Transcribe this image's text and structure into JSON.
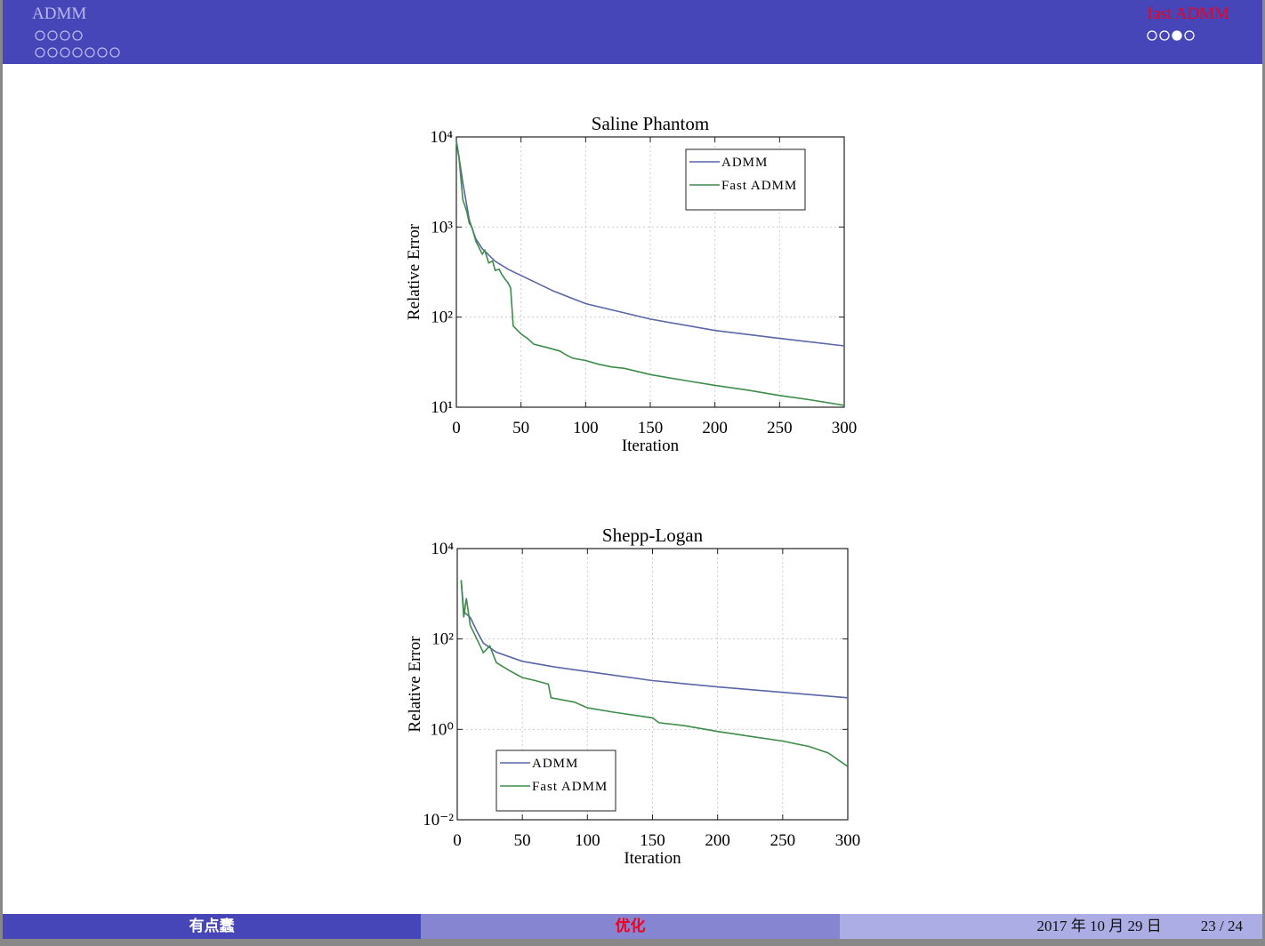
{
  "header": {
    "section": "ADMM",
    "subsection": "fast ADMM"
  },
  "footer": {
    "author": "有点蠢",
    "title": "优化",
    "date": "2017 年 10 月 29 日",
    "page": "23 / 24"
  },
  "chart_data": [
    {
      "type": "line",
      "title": "Saline Phantom",
      "xlabel": "Iteration",
      "ylabel": "Relative Error",
      "xlim": [
        0,
        300
      ],
      "xticks": [
        0,
        50,
        100,
        150,
        200,
        250,
        300
      ],
      "ylim": [
        10,
        10000
      ],
      "log_y": true,
      "yticks": [
        {
          "value": 10,
          "label": "10¹"
        },
        {
          "value": 100,
          "label": "10²"
        },
        {
          "value": 1000,
          "label": "10³"
        },
        {
          "value": 10000,
          "label": "10⁴"
        }
      ],
      "grid": true,
      "legend": "upper right",
      "series": [
        {
          "name": "ADMM",
          "color": "#5866a6",
          "x": [
            0,
            2,
            5,
            10,
            15,
            20,
            30,
            40,
            50,
            75,
            100,
            150,
            200,
            250,
            300
          ],
          "values": [
            9000,
            6000,
            3100,
            1200,
            740,
            575,
            417,
            340,
            290,
            195,
            141,
            95,
            71,
            58,
            48
          ]
        },
        {
          "name": "Fast ADMM",
          "color": "#3d8c4a",
          "x": [
            0,
            2,
            5,
            8,
            10,
            12,
            15,
            20,
            22,
            25,
            28,
            30,
            33,
            35,
            38,
            40,
            42,
            44,
            50,
            55,
            60,
            70,
            80,
            85,
            90,
            100,
            110,
            120,
            130,
            150,
            175,
            200,
            225,
            250,
            275,
            300
          ],
          "values": [
            9000,
            6000,
            2000,
            1500,
            1100,
            1000,
            700,
            500,
            550,
            400,
            420,
            330,
            340,
            300,
            260,
            240,
            210,
            80,
            65,
            58,
            50,
            46,
            42,
            38,
            35,
            33,
            30,
            28,
            27,
            23,
            20,
            17.5,
            15.5,
            13.5,
            12,
            10.5
          ]
        }
      ]
    },
    {
      "type": "line",
      "title": "Shepp-Logan",
      "xlabel": "Iteration",
      "ylabel": "Relative Error",
      "xlim": [
        0,
        300
      ],
      "xticks": [
        0,
        50,
        100,
        150,
        200,
        250,
        300
      ],
      "ylim": [
        0.01,
        10000
      ],
      "log_y": true,
      "yticks": [
        {
          "value": 0.01,
          "label": "10⁻²"
        },
        {
          "value": 1,
          "label": "10⁰"
        },
        {
          "value": 100,
          "label": "10²"
        },
        {
          "value": 10000,
          "label": "10⁴"
        }
      ],
      "grid": true,
      "legend": "lower left",
      "series": [
        {
          "name": "ADMM",
          "color": "#5866a6",
          "x": [
            3,
            5,
            10,
            15,
            20,
            30,
            50,
            75,
            100,
            150,
            200,
            250,
            300
          ],
          "values": [
            2000,
            400,
            300,
            150,
            81,
            51,
            32,
            24,
            19,
            12,
            8.7,
            6.6,
            5.0
          ]
        },
        {
          "name": "Fast ADMM",
          "color": "#3d8c4a",
          "x": [
            3,
            5,
            7,
            10,
            15,
            20,
            25,
            30,
            40,
            50,
            60,
            70,
            72,
            90,
            100,
            120,
            150,
            155,
            175,
            200,
            225,
            250,
            270,
            285,
            300
          ],
          "values": [
            2000,
            300,
            800,
            200,
            100,
            50,
            70,
            30,
            20,
            14,
            12,
            10,
            5,
            4,
            3,
            2.4,
            1.8,
            1.4,
            1.2,
            0.9,
            0.7,
            0.55,
            0.42,
            0.3,
            0.15
          ]
        }
      ]
    }
  ]
}
